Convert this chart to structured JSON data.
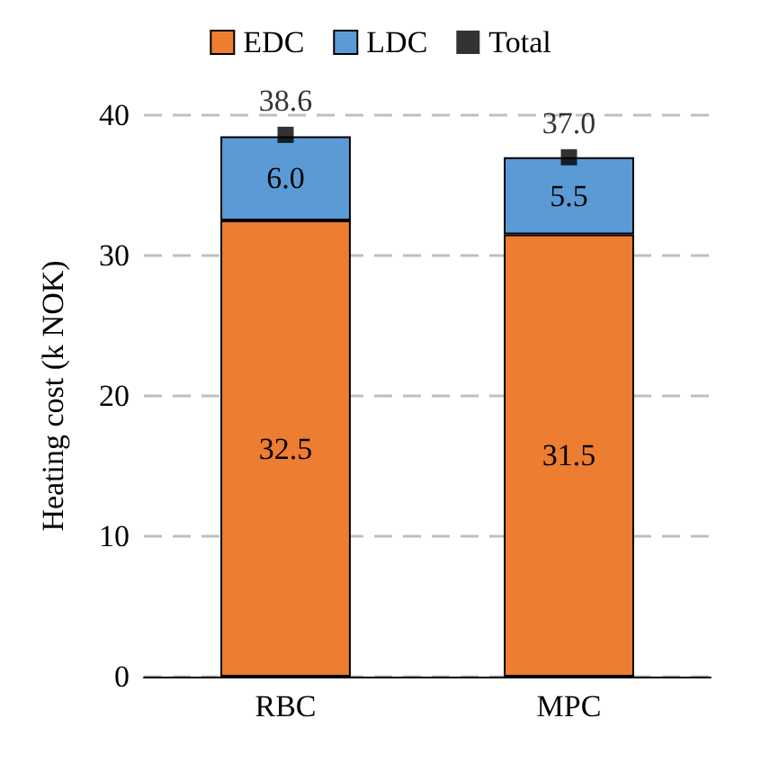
{
  "chart_data": {
    "type": "bar",
    "stacked": true,
    "ylabel": "Heating cost (k NOK)",
    "categories": [
      "RBC",
      "MPC"
    ],
    "series": [
      {
        "name": "EDC",
        "color": "#ed7d31",
        "values": [
          32.5,
          31.5
        ],
        "value_labels": [
          "32.5",
          "31.5"
        ]
      },
      {
        "name": "LDC",
        "color": "#5b9bd5",
        "values": [
          6.0,
          5.5
        ],
        "value_labels": [
          "6.0",
          "5.5"
        ]
      },
      {
        "name": "Total",
        "type": "scatter",
        "marker": "square",
        "color": "#000000",
        "x": [
          "RBC",
          "MPC"
        ],
        "values": [
          38.6,
          37.0
        ],
        "value_labels": [
          "38.6",
          "37.0"
        ]
      }
    ],
    "ylim": [
      0,
      40
    ],
    "yticks": [
      0,
      10,
      20,
      30,
      40
    ],
    "grid": "y",
    "legend": "top"
  }
}
